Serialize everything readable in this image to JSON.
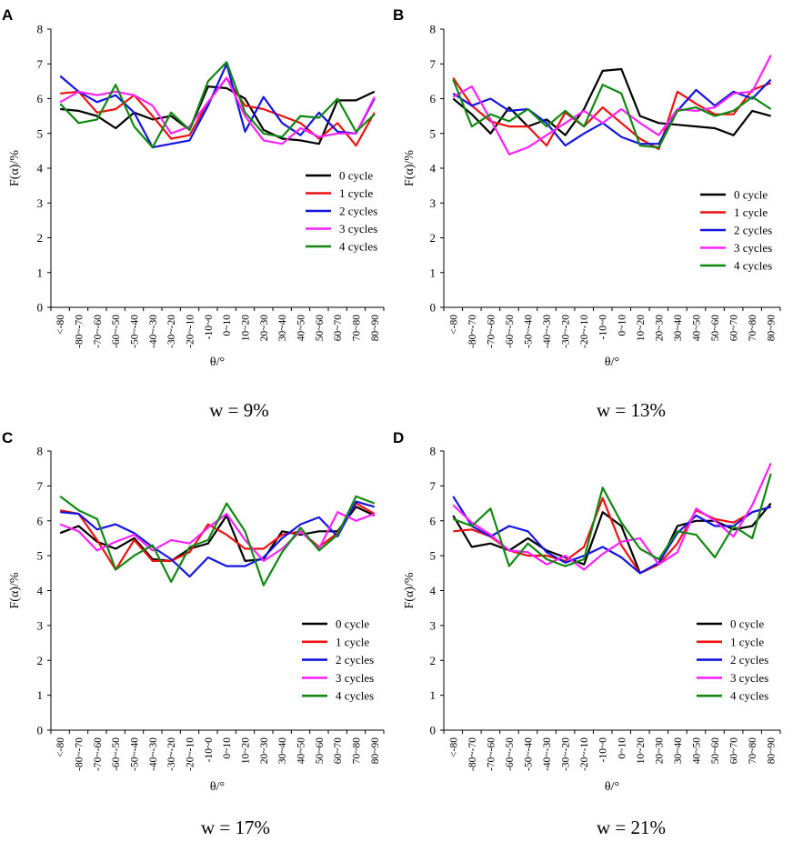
{
  "series_names": [
    "0 cycle",
    "1 cycle",
    "2 cycles",
    "3 cycles",
    "4 cycles"
  ],
  "series_colors": [
    "#000000",
    "#ee1111",
    "#1515e0",
    "#ff22ff",
    "#118811"
  ],
  "chart_data": [
    {
      "type": "line",
      "panel": "A",
      "caption": "w = 9%",
      "xlabel": "θ/°",
      "ylabel": "F(α)/%",
      "ylim": [
        0,
        8
      ],
      "yticks": [
        "0",
        "1",
        "2",
        "3",
        "4",
        "5",
        "6",
        "7",
        "8"
      ],
      "categories": [
        "<-80",
        "-80~-70",
        "-70~-60",
        "-60~-50",
        "-50~-40",
        "-40~-30",
        "-30~-20",
        "-20~-10",
        "-10~0",
        "0~10",
        "10~20",
        "20~30",
        "30~40",
        "40~50",
        "50~60",
        "60~70",
        "70~80",
        "80~90"
      ],
      "legend_position": "bottom-right",
      "series": [
        {
          "name": "0 cycle",
          "values": [
            5.7,
            5.65,
            5.5,
            5.15,
            5.6,
            5.4,
            5.5,
            5.1,
            6.35,
            6.3,
            6.0,
            5.1,
            4.85,
            4.8,
            4.7,
            5.95,
            5.95,
            6.2
          ]
        },
        {
          "name": "1 cycle",
          "values": [
            6.15,
            6.2,
            5.6,
            5.7,
            6.1,
            5.5,
            4.85,
            4.95,
            5.9,
            6.6,
            5.8,
            5.7,
            5.5,
            5.3,
            4.85,
            5.3,
            4.65,
            5.6
          ]
        },
        {
          "name": "2 cycles",
          "values": [
            6.65,
            6.2,
            5.9,
            6.1,
            5.6,
            4.6,
            4.7,
            4.8,
            5.8,
            7.0,
            5.05,
            6.05,
            5.3,
            4.95,
            5.6,
            5.05,
            5.0,
            6.0
          ]
        },
        {
          "name": "3 cycles",
          "values": [
            5.9,
            6.2,
            6.1,
            6.2,
            6.1,
            5.8,
            5.0,
            5.2,
            5.9,
            6.6,
            5.5,
            4.8,
            4.7,
            5.15,
            4.9,
            5.0,
            5.0,
            6.05
          ]
        },
        {
          "name": "4 cycles",
          "values": [
            5.85,
            5.3,
            5.4,
            6.4,
            5.2,
            4.6,
            5.6,
            5.1,
            6.5,
            7.05,
            5.6,
            5.0,
            4.9,
            5.5,
            5.45,
            6.0,
            5.05,
            5.55
          ]
        }
      ]
    },
    {
      "type": "line",
      "panel": "B",
      "caption": "w = 13%",
      "xlabel": "θ/°",
      "ylabel": "F(α)/%",
      "ylim": [
        0,
        8
      ],
      "yticks": [
        "0",
        "1",
        "2",
        "3",
        "4",
        "5",
        "6",
        "7",
        "8"
      ],
      "categories": [
        "<-80",
        "-80~-70",
        "-70~-60",
        "-60~-50",
        "-50~-40",
        "-40~-30",
        "-30~-20",
        "-20~-10",
        "-10~0",
        "0~10",
        "10~20",
        "20~30",
        "30~40",
        "40~50",
        "50~60",
        "60~70",
        "70~80",
        "80~90"
      ],
      "legend_position": "bottom-right",
      "series": [
        {
          "name": "0 cycle",
          "values": [
            6.0,
            5.55,
            5.0,
            5.75,
            5.2,
            5.4,
            4.95,
            5.7,
            6.8,
            6.85,
            5.5,
            5.3,
            5.25,
            5.2,
            5.15,
            4.95,
            5.65,
            5.5
          ]
        },
        {
          "name": "1 cycle",
          "values": [
            6.6,
            5.8,
            5.35,
            5.2,
            5.2,
            4.65,
            5.6,
            5.2,
            5.75,
            5.3,
            4.85,
            4.55,
            6.2,
            5.85,
            5.55,
            5.55,
            6.25,
            6.45
          ]
        },
        {
          "name": "2 cycles",
          "values": [
            6.15,
            5.8,
            6.0,
            5.65,
            5.7,
            5.3,
            4.65,
            5.0,
            5.3,
            4.9,
            4.7,
            4.7,
            5.65,
            6.25,
            5.8,
            6.2,
            6.0,
            6.55
          ]
        },
        {
          "name": "3 cycles",
          "values": [
            6.05,
            6.35,
            5.4,
            4.4,
            4.6,
            4.95,
            5.3,
            5.65,
            5.3,
            5.7,
            5.3,
            4.95,
            5.7,
            5.65,
            5.75,
            6.15,
            6.2,
            7.25
          ]
        },
        {
          "name": "4 cycles",
          "values": [
            6.55,
            5.2,
            5.55,
            5.35,
            5.7,
            5.2,
            5.65,
            5.2,
            6.4,
            6.15,
            4.65,
            4.6,
            5.65,
            5.75,
            5.5,
            5.65,
            6.05,
            5.7
          ]
        }
      ]
    },
    {
      "type": "line",
      "panel": "C",
      "caption": "w = 17%",
      "xlabel": "θ/°",
      "ylabel": "F(α)/%",
      "ylim": [
        0,
        8
      ],
      "yticks": [
        "0",
        "1",
        "2",
        "3",
        "4",
        "5",
        "6",
        "7",
        "8"
      ],
      "categories": [
        "<-80",
        "-80~-70",
        "-70~-60",
        "-60~-50",
        "-50~-40",
        "-40~-30",
        "-30~-20",
        "-20~-10",
        "-10~0",
        "0~10",
        "10~20",
        "20~30",
        "30~40",
        "40~50",
        "50~60",
        "60~70",
        "70~80",
        "80~90"
      ],
      "legend_position": "bottom-right",
      "series": [
        {
          "name": "0 cycle",
          "values": [
            5.65,
            5.85,
            5.4,
            5.2,
            5.5,
            4.9,
            4.85,
            5.2,
            5.35,
            6.15,
            4.85,
            4.9,
            5.7,
            5.6,
            5.7,
            5.7,
            6.4,
            6.15
          ]
        },
        {
          "name": "1 cycle",
          "values": [
            6.3,
            6.2,
            5.45,
            4.6,
            5.45,
            4.85,
            4.85,
            5.1,
            5.9,
            5.6,
            5.2,
            5.2,
            5.6,
            5.7,
            5.25,
            5.65,
            6.5,
            6.2
          ]
        },
        {
          "name": "2 cycles",
          "values": [
            6.25,
            6.2,
            5.75,
            5.9,
            5.65,
            5.25,
            4.9,
            4.4,
            4.95,
            4.7,
            4.7,
            4.95,
            5.5,
            5.9,
            6.1,
            5.55,
            6.55,
            6.4
          ]
        },
        {
          "name": "3 cycles",
          "values": [
            5.9,
            5.7,
            5.15,
            5.4,
            5.6,
            5.15,
            5.45,
            5.35,
            5.8,
            6.2,
            5.45,
            4.85,
            5.2,
            5.7,
            5.2,
            6.25,
            6.0,
            6.2
          ]
        },
        {
          "name": "4 cycles",
          "values": [
            6.7,
            6.3,
            6.05,
            4.6,
            5.0,
            5.3,
            4.25,
            5.25,
            5.45,
            6.5,
            5.7,
            4.15,
            5.1,
            5.8,
            5.15,
            5.6,
            6.7,
            6.5
          ]
        }
      ]
    },
    {
      "type": "line",
      "panel": "D",
      "caption": "w = 21%",
      "xlabel": "θ/°",
      "ylabel": "F(α)/%",
      "ylim": [
        0,
        8
      ],
      "yticks": [
        "0",
        "1",
        "2",
        "3",
        "4",
        "5",
        "6",
        "7",
        "8"
      ],
      "categories": [
        "<-80",
        "-80~-70",
        "-70~-60",
        "-60~-50",
        "-50~-40",
        "-40~-30",
        "-30~-20",
        "-20~-10",
        "-10~0",
        "0~10",
        "10~20",
        "20~30",
        "30~40",
        "40~50",
        "50~60",
        "60~70",
        "70~80",
        "80~90"
      ],
      "legend_position": "bottom-right",
      "series": [
        {
          "name": "0 cycle",
          "values": [
            6.15,
            5.25,
            5.35,
            5.15,
            5.5,
            5.15,
            4.95,
            4.75,
            6.25,
            5.85,
            4.5,
            4.75,
            5.85,
            6.0,
            6.0,
            5.75,
            5.85,
            6.5
          ]
        },
        {
          "name": "1 cycle",
          "values": [
            5.7,
            5.75,
            5.55,
            5.15,
            5.0,
            5.0,
            4.85,
            5.25,
            6.65,
            5.3,
            4.5,
            4.75,
            5.35,
            6.3,
            6.05,
            5.95,
            6.25,
            6.4
          ]
        },
        {
          "name": "2 cycles",
          "values": [
            6.7,
            5.85,
            5.55,
            5.85,
            5.7,
            5.1,
            4.8,
            5.0,
            5.25,
            4.95,
            4.5,
            4.8,
            5.65,
            6.15,
            5.85,
            5.85,
            6.25,
            6.4
          ]
        },
        {
          "name": "3 cycles",
          "values": [
            6.45,
            5.95,
            5.6,
            5.15,
            5.1,
            4.75,
            5.0,
            4.6,
            5.05,
            5.4,
            5.5,
            4.75,
            5.1,
            6.35,
            6.0,
            5.55,
            6.45,
            7.65
          ]
        },
        {
          "name": "4 cycles",
          "values": [
            6.05,
            5.85,
            6.35,
            4.7,
            5.35,
            4.9,
            4.7,
            4.9,
            6.95,
            5.95,
            5.2,
            4.9,
            5.7,
            5.6,
            4.95,
            5.85,
            5.5,
            7.35
          ]
        }
      ]
    }
  ]
}
